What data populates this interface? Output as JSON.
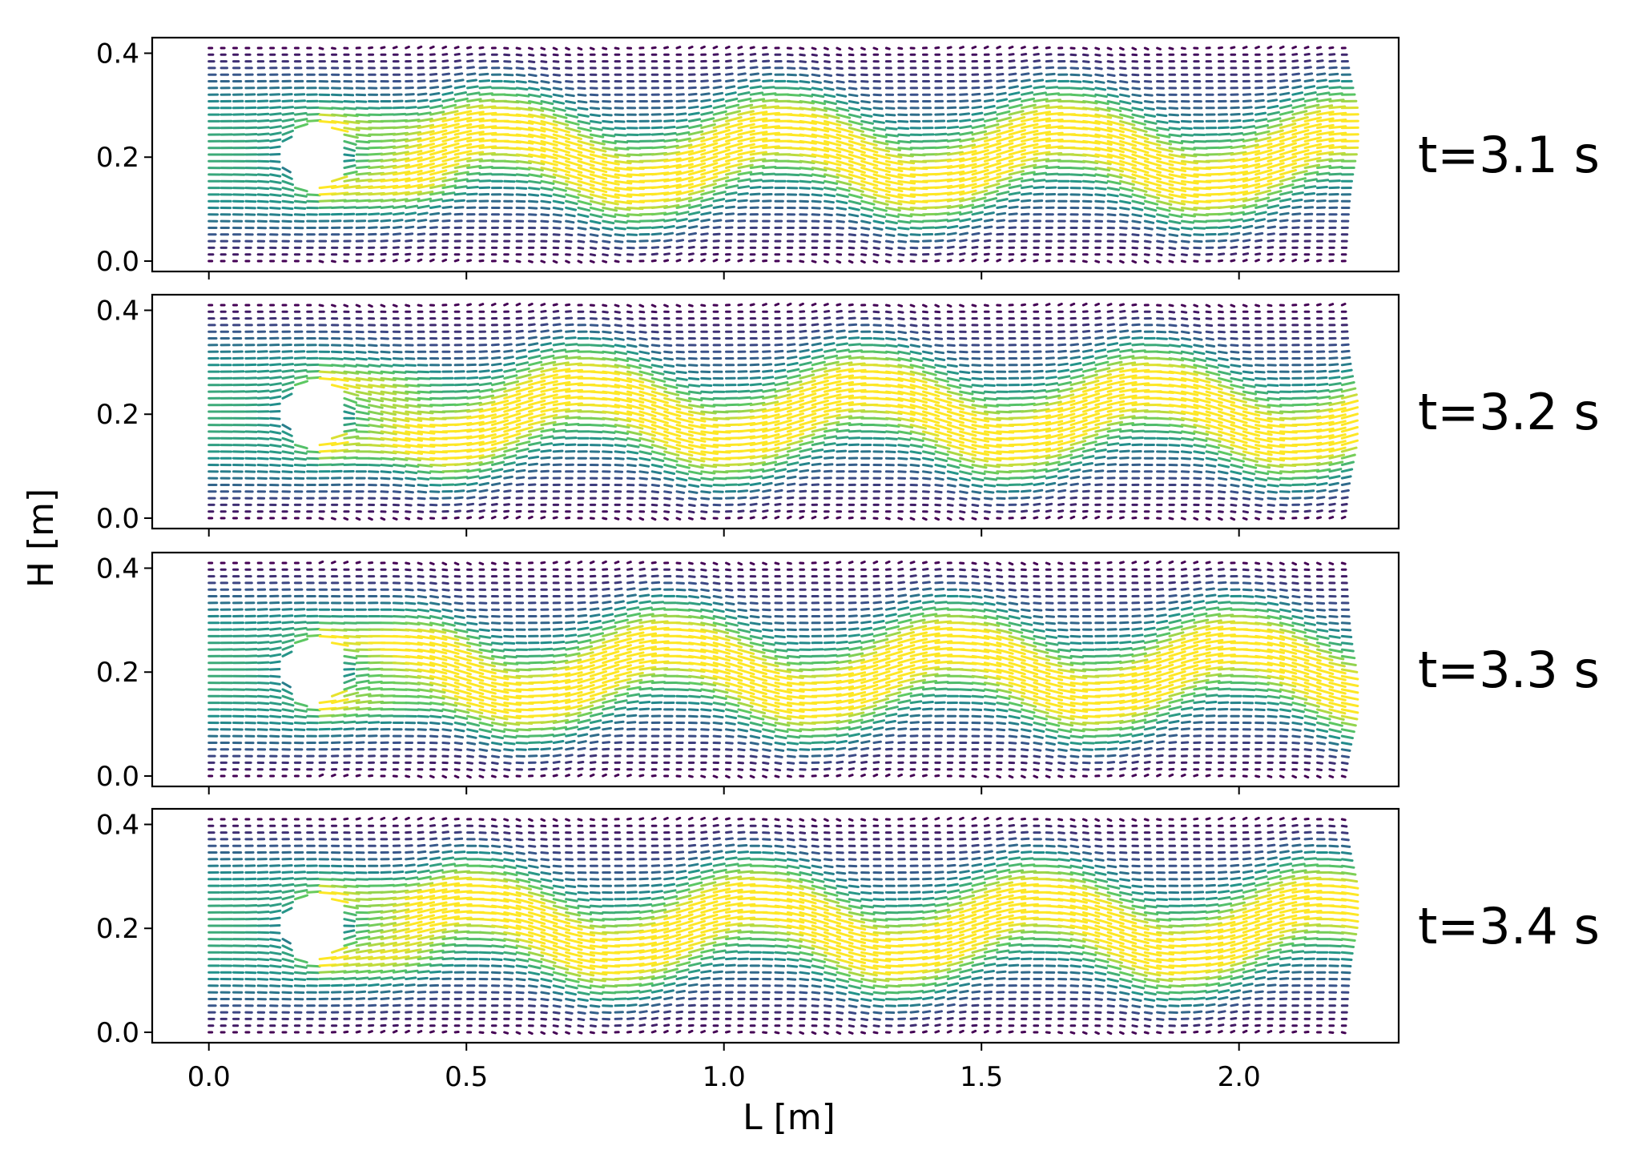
{
  "chart_data": {
    "type": "quiver",
    "xlabel": "L [m]",
    "ylabel": "H [m]",
    "xlim": [
      -0.11,
      2.31
    ],
    "ylim": [
      -0.02,
      0.43
    ],
    "xticks": [
      "0.0",
      "0.5",
      "1.0",
      "1.5",
      "2.0"
    ],
    "yticks": [
      "0.0",
      "0.2",
      "0.4"
    ],
    "domain": {
      "x": [
        0.0,
        2.2
      ],
      "y": [
        0.0,
        0.41
      ]
    },
    "cylinder": {
      "cx": 0.2,
      "cy": 0.2,
      "r": 0.05
    },
    "colormap": [
      "#440154",
      "#3b528b",
      "#21918c",
      "#5ec962",
      "#fde725"
    ],
    "panels": [
      {
        "label": "t=3.1 s",
        "time": 3.1
      },
      {
        "label": "t=3.2 s",
        "time": 3.2
      },
      {
        "label": "t=3.3 s",
        "time": 3.3
      },
      {
        "label": "t=3.4 s",
        "time": 3.4
      }
    ]
  }
}
